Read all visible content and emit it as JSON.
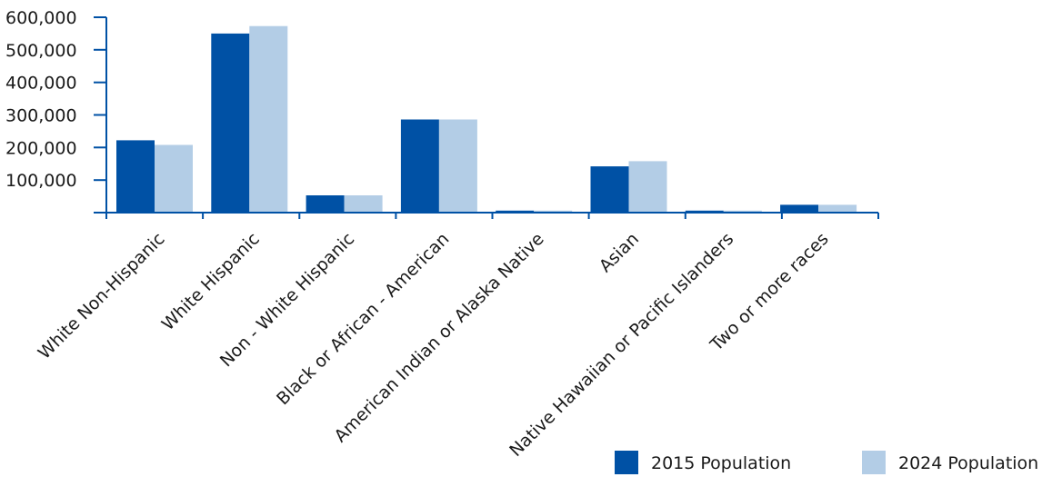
{
  "chart_data": {
    "type": "bar",
    "title": "",
    "xlabel": "",
    "ylabel": "",
    "categories": [
      "White Non-Hispanic",
      "White Hispanic",
      "Non - White Hispanic",
      "Black or African - American",
      "American Indian or Alaska Native",
      "Asian",
      "Native Hawaiian or Pacific Islanders",
      "Two or more races"
    ],
    "series": [
      {
        "name": "2015 Population",
        "color": "#0051a5",
        "values": [
          222000,
          550000,
          53000,
          286000,
          6000,
          142000,
          6000,
          24000
        ]
      },
      {
        "name": "2024 Population",
        "color": "#b3cde6",
        "values": [
          208000,
          573000,
          53000,
          286000,
          6000,
          158000,
          6000,
          24000
        ]
      }
    ],
    "yticks": [
      100000,
      200000,
      300000,
      400000,
      500000,
      600000
    ],
    "ytick_labels": [
      "100,000",
      "200,000",
      "300,000",
      "400,000",
      "500,000",
      "600,000"
    ],
    "ylim": [
      0,
      600000
    ],
    "grid": false,
    "legend_position": "bottom-right",
    "axis_color": "#0051a5"
  }
}
